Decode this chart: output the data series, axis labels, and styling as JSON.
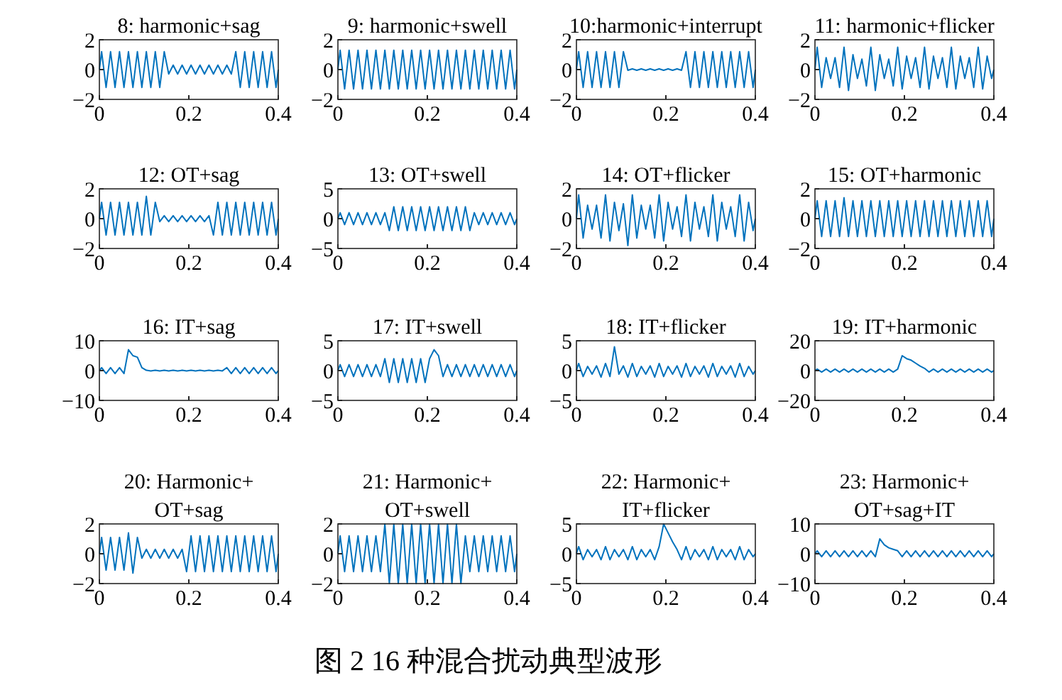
{
  "chart_data": [
    {
      "type": "line",
      "title": "8: harmonic+sag",
      "color": "#0072bd",
      "xlim": [
        0,
        0.4
      ],
      "ylim": [
        -2,
        2
      ],
      "xticks": [
        0,
        0.2,
        0.4
      ],
      "yticks": [
        -2,
        0,
        2
      ],
      "x": [
        0,
        0.005,
        0.015,
        0.025,
        0.035,
        0.045,
        0.055,
        0.065,
        0.075,
        0.085,
        0.095,
        0.105,
        0.115,
        0.125,
        0.135,
        0.145,
        0.155,
        0.165,
        0.175,
        0.185,
        0.195,
        0.205,
        0.215,
        0.225,
        0.235,
        0.245,
        0.255,
        0.265,
        0.275,
        0.285,
        0.295,
        0.305,
        0.315,
        0.325,
        0.335,
        0.345,
        0.355,
        0.365,
        0.375,
        0.385,
        0.395,
        0.4
      ],
      "values": [
        0,
        1.2,
        -1.2,
        1.2,
        -1.2,
        1.2,
        -1.2,
        1.2,
        -1.2,
        1.2,
        -1.2,
        1.2,
        -1.2,
        1.2,
        -1.2,
        1.2,
        -0.3,
        0.3,
        -0.3,
        0.3,
        -0.3,
        0.3,
        -0.3,
        0.3,
        -0.3,
        0.3,
        -0.3,
        0.3,
        -0.3,
        0.3,
        -0.3,
        1.2,
        -1.2,
        1.2,
        -1.2,
        1.2,
        -1.2,
        1.2,
        -1.2,
        1.2,
        -1.2,
        0
      ]
    },
    {
      "type": "line",
      "title": "9: harmonic+swell",
      "color": "#0072bd",
      "xlim": [
        0,
        0.4
      ],
      "ylim": [
        -2,
        2
      ],
      "xticks": [
        0,
        0.2,
        0.4
      ],
      "yticks": [
        -2,
        0,
        2
      ],
      "x": [
        0,
        0.005,
        0.015,
        0.025,
        0.035,
        0.045,
        0.055,
        0.065,
        0.075,
        0.085,
        0.095,
        0.105,
        0.115,
        0.125,
        0.135,
        0.145,
        0.155,
        0.165,
        0.175,
        0.185,
        0.195,
        0.205,
        0.215,
        0.225,
        0.235,
        0.245,
        0.255,
        0.265,
        0.275,
        0.285,
        0.295,
        0.305,
        0.315,
        0.325,
        0.335,
        0.345,
        0.355,
        0.365,
        0.375,
        0.385,
        0.395,
        0.4
      ],
      "values": [
        0,
        1.3,
        -1.3,
        1.3,
        -1.3,
        1.3,
        -1.3,
        1.3,
        -1.3,
        1.3,
        -1.3,
        1.3,
        -1.3,
        1.3,
        -1.3,
        1.3,
        -1.3,
        1.3,
        -1.3,
        1.3,
        -1.3,
        1.3,
        -1.3,
        1.3,
        -1.3,
        1.3,
        -1.3,
        1.3,
        -1.3,
        1.3,
        -1.3,
        1.3,
        -1.3,
        1.3,
        -1.3,
        1.3,
        -1.3,
        1.3,
        -1.3,
        1.3,
        -1.3,
        0
      ]
    },
    {
      "type": "line",
      "title": "10:harmonic+interrupt",
      "color": "#0072bd",
      "xlim": [
        0,
        0.4
      ],
      "ylim": [
        -2,
        2
      ],
      "xticks": [
        0,
        0.2,
        0.4
      ],
      "yticks": [
        -2,
        0,
        2
      ],
      "x": [
        0,
        0.005,
        0.015,
        0.025,
        0.035,
        0.045,
        0.055,
        0.065,
        0.075,
        0.085,
        0.095,
        0.105,
        0.115,
        0.125,
        0.135,
        0.145,
        0.155,
        0.165,
        0.175,
        0.185,
        0.195,
        0.205,
        0.215,
        0.225,
        0.235,
        0.245,
        0.255,
        0.265,
        0.275,
        0.285,
        0.295,
        0.305,
        0.315,
        0.325,
        0.335,
        0.345,
        0.355,
        0.365,
        0.375,
        0.385,
        0.395,
        0.4
      ],
      "values": [
        0,
        1.2,
        -1.2,
        1.2,
        -1.2,
        1.2,
        -1.2,
        1.2,
        -1.2,
        1.2,
        -1.2,
        1.2,
        -0.05,
        0.05,
        -0.05,
        0.05,
        -0.05,
        0.05,
        -0.05,
        0.05,
        -0.05,
        0.05,
        -0.05,
        0.05,
        -0.05,
        1.2,
        -1.2,
        1.2,
        -1.2,
        1.2,
        -1.2,
        1.2,
        -1.2,
        1.2,
        -1.2,
        1.2,
        -1.2,
        1.2,
        -1.2,
        1.2,
        -1.2,
        0
      ]
    },
    {
      "type": "line",
      "title": "11: harmonic+flicker",
      "color": "#0072bd",
      "xlim": [
        0,
        0.4
      ],
      "ylim": [
        -2,
        2
      ],
      "xticks": [
        0,
        0.2,
        0.4
      ],
      "yticks": [
        -2,
        0,
        2
      ],
      "x": [
        0,
        0.005,
        0.015,
        0.025,
        0.035,
        0.045,
        0.055,
        0.065,
        0.075,
        0.085,
        0.095,
        0.105,
        0.115,
        0.125,
        0.135,
        0.145,
        0.155,
        0.165,
        0.175,
        0.185,
        0.195,
        0.205,
        0.215,
        0.225,
        0.235,
        0.245,
        0.255,
        0.265,
        0.275,
        0.285,
        0.295,
        0.305,
        0.315,
        0.325,
        0.335,
        0.345,
        0.355,
        0.365,
        0.375,
        0.385,
        0.395,
        0.4
      ],
      "values": [
        0,
        1.5,
        -1.2,
        0.8,
        -0.6,
        0.8,
        -1.2,
        1.5,
        -1.4,
        1.0,
        -0.6,
        0.7,
        -1.1,
        1.5,
        -1.4,
        1.0,
        -0.6,
        0.7,
        -1.1,
        1.5,
        -1.3,
        0.9,
        -0.6,
        0.8,
        -1.2,
        1.5,
        -1.3,
        0.9,
        -0.6,
        0.8,
        -1.2,
        1.5,
        -1.3,
        0.9,
        -0.6,
        0.8,
        -1.2,
        1.5,
        -1.3,
        0.9,
        -0.6,
        0
      ]
    },
    {
      "type": "line",
      "title": "12: OT+sag",
      "color": "#0072bd",
      "xlim": [
        0,
        0.4
      ],
      "ylim": [
        -2,
        2
      ],
      "xticks": [
        0,
        0.2,
        0.4
      ],
      "yticks": [
        -2,
        0,
        2
      ],
      "x": [
        0,
        0.005,
        0.015,
        0.025,
        0.035,
        0.045,
        0.055,
        0.065,
        0.075,
        0.085,
        0.095,
        0.105,
        0.115,
        0.125,
        0.135,
        0.145,
        0.155,
        0.165,
        0.175,
        0.185,
        0.195,
        0.205,
        0.215,
        0.225,
        0.235,
        0.245,
        0.255,
        0.265,
        0.275,
        0.285,
        0.295,
        0.305,
        0.315,
        0.325,
        0.335,
        0.345,
        0.355,
        0.365,
        0.375,
        0.385,
        0.395,
        0.4
      ],
      "values": [
        0,
        1.1,
        -1.1,
        1.1,
        -1.1,
        1.1,
        -1.1,
        1.1,
        -1.1,
        1.1,
        -1.1,
        1.5,
        -1.1,
        1.1,
        -0.2,
        0.2,
        -0.2,
        0.2,
        -0.2,
        0.2,
        -0.2,
        0.2,
        -0.2,
        0.2,
        -0.2,
        0.2,
        -1.1,
        1.1,
        -1.1,
        1.1,
        -1.1,
        1.1,
        -1.1,
        1.1,
        -1.1,
        1.1,
        -1.1,
        1.1,
        -1.1,
        1.1,
        -1.1,
        0
      ]
    },
    {
      "type": "line",
      "title": "13: OT+swell",
      "color": "#0072bd",
      "xlim": [
        0,
        0.4
      ],
      "ylim": [
        -5,
        5
      ],
      "xticks": [
        0,
        0.2,
        0.4
      ],
      "yticks": [
        -5,
        0,
        5
      ],
      "x": [
        0,
        0.005,
        0.015,
        0.025,
        0.035,
        0.045,
        0.055,
        0.065,
        0.075,
        0.085,
        0.095,
        0.105,
        0.115,
        0.125,
        0.135,
        0.145,
        0.155,
        0.165,
        0.175,
        0.185,
        0.195,
        0.205,
        0.215,
        0.225,
        0.235,
        0.245,
        0.255,
        0.265,
        0.275,
        0.285,
        0.295,
        0.305,
        0.315,
        0.325,
        0.335,
        0.345,
        0.355,
        0.365,
        0.375,
        0.385,
        0.395,
        0.4
      ],
      "values": [
        0,
        1,
        -1,
        1,
        -1,
        1,
        -1,
        1,
        -1,
        1,
        -1,
        1,
        -2,
        2,
        -2,
        2,
        -2,
        2,
        -2,
        2,
        -2,
        2,
        -2,
        2,
        -2,
        2,
        -2,
        2,
        -2,
        2,
        -2,
        1,
        -1,
        1,
        -1,
        1,
        -1,
        1,
        -1,
        1,
        -1,
        0
      ]
    },
    {
      "type": "line",
      "title": "14: OT+flicker",
      "color": "#0072bd",
      "xlim": [
        0,
        0.4
      ],
      "ylim": [
        -2,
        2
      ],
      "xticks": [
        0,
        0.2,
        0.4
      ],
      "yticks": [
        -2,
        0,
        2
      ],
      "x": [
        0,
        0.005,
        0.015,
        0.025,
        0.035,
        0.045,
        0.055,
        0.065,
        0.075,
        0.085,
        0.095,
        0.105,
        0.115,
        0.125,
        0.135,
        0.145,
        0.155,
        0.165,
        0.175,
        0.185,
        0.195,
        0.205,
        0.215,
        0.225,
        0.235,
        0.245,
        0.255,
        0.265,
        0.275,
        0.285,
        0.295,
        0.305,
        0.315,
        0.325,
        0.335,
        0.345,
        0.355,
        0.365,
        0.375,
        0.385,
        0.395,
        0.4
      ],
      "values": [
        0,
        1.6,
        -1.3,
        0.9,
        -0.7,
        0.9,
        -1.3,
        1.6,
        -1.5,
        1.1,
        -0.8,
        1.0,
        -1.8,
        1.6,
        -1.3,
        0.9,
        -0.7,
        0.9,
        -1.3,
        1.6,
        -1.5,
        1.1,
        -0.7,
        0.8,
        -1.2,
        1.6,
        -1.5,
        1.1,
        -0.7,
        0.8,
        -1.2,
        1.6,
        -1.5,
        1.1,
        -0.7,
        0.8,
        -1.2,
        1.6,
        -1.5,
        1.1,
        -0.8,
        0
      ]
    },
    {
      "type": "line",
      "title": "15: OT+harmonic",
      "color": "#0072bd",
      "xlim": [
        0,
        0.4
      ],
      "ylim": [
        -2,
        2
      ],
      "xticks": [
        0,
        0.2,
        0.4
      ],
      "yticks": [
        -2,
        0,
        2
      ],
      "x": [
        0,
        0.005,
        0.015,
        0.025,
        0.035,
        0.045,
        0.055,
        0.065,
        0.075,
        0.085,
        0.095,
        0.105,
        0.115,
        0.125,
        0.135,
        0.145,
        0.155,
        0.165,
        0.175,
        0.185,
        0.195,
        0.205,
        0.215,
        0.225,
        0.235,
        0.245,
        0.255,
        0.265,
        0.275,
        0.285,
        0.295,
        0.305,
        0.315,
        0.325,
        0.335,
        0.345,
        0.355,
        0.365,
        0.375,
        0.385,
        0.395,
        0.4
      ],
      "values": [
        0,
        1.2,
        -1.2,
        1.2,
        -1.2,
        1.2,
        -1.2,
        1.4,
        -1.2,
        1.2,
        -1.2,
        1.2,
        -1.2,
        1.2,
        -1.2,
        1.2,
        -1.2,
        1.2,
        -1.2,
        1.2,
        -1.2,
        1.2,
        -1.2,
        1.2,
        -1.2,
        1.2,
        -1.2,
        1.2,
        -1.2,
        1.2,
        -1.2,
        1.2,
        -1.2,
        1.2,
        -1.2,
        1.2,
        -1.2,
        1.2,
        -1.2,
        1.2,
        -1.2,
        0
      ]
    },
    {
      "type": "line",
      "title": "16: IT+sag",
      "color": "#0072bd",
      "xlim": [
        0,
        0.4
      ],
      "ylim": [
        -10,
        10
      ],
      "xticks": [
        0,
        0.2,
        0.4
      ],
      "yticks": [
        -10,
        0,
        10
      ],
      "x": [
        0,
        0.005,
        0.015,
        0.025,
        0.035,
        0.045,
        0.055,
        0.065,
        0.075,
        0.085,
        0.095,
        0.105,
        0.115,
        0.125,
        0.135,
        0.145,
        0.155,
        0.165,
        0.175,
        0.185,
        0.195,
        0.205,
        0.215,
        0.225,
        0.235,
        0.245,
        0.255,
        0.265,
        0.275,
        0.285,
        0.295,
        0.305,
        0.315,
        0.325,
        0.335,
        0.345,
        0.355,
        0.365,
        0.375,
        0.385,
        0.395,
        0.4
      ],
      "values": [
        0,
        1,
        -1,
        1,
        -1,
        1,
        -1,
        7,
        5,
        4.5,
        1,
        0.1,
        -0.1,
        0.1,
        -0.1,
        0.1,
        -0.1,
        0.1,
        -0.1,
        0.1,
        -0.1,
        0.1,
        -0.1,
        0.1,
        -0.1,
        0.1,
        -0.1,
        0.1,
        -0.1,
        1,
        -1,
        1,
        -1,
        1,
        -1,
        1,
        -1,
        1,
        -1,
        1,
        -1,
        0
      ]
    },
    {
      "type": "line",
      "title": "17: IT+swell",
      "color": "#0072bd",
      "xlim": [
        0,
        0.4
      ],
      "ylim": [
        -5,
        5
      ],
      "xticks": [
        0,
        0.2,
        0.4
      ],
      "yticks": [
        -5,
        0,
        5
      ],
      "x": [
        0,
        0.005,
        0.015,
        0.025,
        0.035,
        0.045,
        0.055,
        0.065,
        0.075,
        0.085,
        0.095,
        0.105,
        0.115,
        0.125,
        0.135,
        0.145,
        0.155,
        0.165,
        0.175,
        0.185,
        0.195,
        0.205,
        0.215,
        0.225,
        0.235,
        0.245,
        0.255,
        0.265,
        0.275,
        0.285,
        0.295,
        0.305,
        0.315,
        0.325,
        0.335,
        0.345,
        0.355,
        0.365,
        0.375,
        0.385,
        0.395,
        0.4
      ],
      "values": [
        0,
        1,
        -1,
        1,
        -1,
        1,
        -1,
        1,
        -1,
        1,
        -1,
        2,
        -2,
        2,
        -2,
        2,
        -2,
        2,
        -2,
        2,
        -2,
        2,
        3.5,
        2.5,
        -1,
        1,
        -1,
        1,
        -1,
        1,
        -1,
        1,
        -1,
        1,
        -1,
        1,
        -1,
        1,
        -1,
        1,
        -1,
        0
      ]
    },
    {
      "type": "line",
      "title": "18: IT+flicker",
      "color": "#0072bd",
      "xlim": [
        0,
        0.4
      ],
      "ylim": [
        -5,
        5
      ],
      "xticks": [
        0,
        0.2,
        0.4
      ],
      "yticks": [
        -5,
        0,
        5
      ],
      "x": [
        0,
        0.005,
        0.015,
        0.025,
        0.035,
        0.045,
        0.055,
        0.065,
        0.075,
        0.085,
        0.095,
        0.105,
        0.115,
        0.125,
        0.135,
        0.145,
        0.155,
        0.165,
        0.175,
        0.185,
        0.195,
        0.205,
        0.215,
        0.225,
        0.235,
        0.245,
        0.255,
        0.265,
        0.275,
        0.285,
        0.295,
        0.305,
        0.315,
        0.325,
        0.335,
        0.345,
        0.355,
        0.365,
        0.375,
        0.385,
        0.395,
        0.4
      ],
      "values": [
        0,
        1.2,
        -1.0,
        0.7,
        -0.6,
        0.8,
        -1.1,
        1.2,
        -1.0,
        4,
        -0.6,
        0.8,
        -1.1,
        1.2,
        -1.0,
        0.7,
        -0.6,
        0.8,
        -1.1,
        1.2,
        -1.0,
        0.7,
        -0.6,
        0.8,
        -1.1,
        1.2,
        -1.0,
        0.7,
        -0.6,
        0.8,
        -1.1,
        1.2,
        -1.0,
        0.7,
        -0.6,
        0.8,
        -1.1,
        1.2,
        -1.0,
        0.7,
        -0.6,
        0
      ]
    },
    {
      "type": "line",
      "title": "19: IT+harmonic",
      "color": "#0072bd",
      "xlim": [
        0,
        0.4
      ],
      "ylim": [
        -20,
        20
      ],
      "xticks": [
        0,
        0.2,
        0.4
      ],
      "yticks": [
        -20,
        0,
        20
      ],
      "x": [
        0,
        0.005,
        0.015,
        0.025,
        0.035,
        0.045,
        0.055,
        0.065,
        0.075,
        0.085,
        0.095,
        0.105,
        0.115,
        0.125,
        0.135,
        0.145,
        0.155,
        0.165,
        0.175,
        0.185,
        0.195,
        0.205,
        0.215,
        0.225,
        0.235,
        0.245,
        0.255,
        0.265,
        0.275,
        0.285,
        0.295,
        0.305,
        0.315,
        0.325,
        0.335,
        0.345,
        0.355,
        0.365,
        0.375,
        0.385,
        0.395,
        0.4
      ],
      "values": [
        0,
        1,
        -1,
        1,
        -1,
        1,
        -1,
        1,
        -1,
        1,
        -1,
        1,
        -1,
        1,
        -1,
        1,
        -1,
        1,
        -1,
        1,
        10,
        8,
        7,
        5,
        3,
        1.5,
        -1,
        1,
        -1,
        1,
        -1,
        1,
        -1,
        1,
        -1,
        1,
        -1,
        1,
        -1,
        1,
        -1,
        0
      ]
    },
    {
      "type": "line",
      "title": "20: Harmonic+\nOT+sag",
      "color": "#0072bd",
      "xlim": [
        0,
        0.4
      ],
      "ylim": [
        -2,
        2
      ],
      "xticks": [
        0,
        0.2,
        0.4
      ],
      "yticks": [
        -2,
        0,
        2
      ],
      "x": [
        0,
        0.005,
        0.015,
        0.025,
        0.035,
        0.045,
        0.055,
        0.065,
        0.075,
        0.085,
        0.095,
        0.105,
        0.115,
        0.125,
        0.135,
        0.145,
        0.155,
        0.165,
        0.175,
        0.185,
        0.195,
        0.205,
        0.215,
        0.225,
        0.235,
        0.245,
        0.255,
        0.265,
        0.275,
        0.285,
        0.295,
        0.305,
        0.315,
        0.325,
        0.335,
        0.345,
        0.355,
        0.365,
        0.375,
        0.385,
        0.395,
        0.4
      ],
      "values": [
        0,
        1.1,
        -1.1,
        1.1,
        -1.1,
        1.1,
        -1.1,
        1.4,
        -1.3,
        1.1,
        -0.3,
        0.3,
        -0.3,
        0.3,
        -0.3,
        0.3,
        -0.3,
        0.3,
        -0.3,
        0.3,
        -1.2,
        1.2,
        -1.2,
        1.2,
        -1.2,
        1.2,
        -1.2,
        1.2,
        -1.2,
        1.2,
        -1.2,
        1.2,
        -1.2,
        1.2,
        -1.2,
        1.2,
        -1.2,
        1.2,
        -1.2,
        1.2,
        -1.2,
        0
      ]
    },
    {
      "type": "line",
      "title": "21: Harmonic+\nOT+swell",
      "color": "#0072bd",
      "xlim": [
        0,
        0.4
      ],
      "ylim": [
        -2,
        2
      ],
      "xticks": [
        0,
        0.2,
        0.4
      ],
      "yticks": [
        -2,
        0,
        2
      ],
      "x": [
        0,
        0.005,
        0.015,
        0.025,
        0.035,
        0.045,
        0.055,
        0.065,
        0.075,
        0.085,
        0.095,
        0.105,
        0.115,
        0.125,
        0.135,
        0.145,
        0.155,
        0.165,
        0.175,
        0.185,
        0.195,
        0.205,
        0.215,
        0.225,
        0.235,
        0.245,
        0.255,
        0.265,
        0.275,
        0.285,
        0.295,
        0.305,
        0.315,
        0.325,
        0.335,
        0.345,
        0.355,
        0.365,
        0.375,
        0.385,
        0.395,
        0.4
      ],
      "values": [
        0,
        1.2,
        -1.2,
        1.2,
        -1.2,
        1.2,
        -1.2,
        1.2,
        -1.2,
        1.2,
        -1.2,
        2,
        -2,
        2,
        -2,
        2,
        -2,
        2,
        -2,
        2,
        -2,
        2,
        -2,
        2,
        -2,
        2,
        -2,
        2,
        -2,
        1.2,
        -1.2,
        1.2,
        -1.2,
        1.2,
        -1.2,
        1.2,
        -1.2,
        1.2,
        -1.2,
        1.2,
        -1.2,
        0
      ]
    },
    {
      "type": "line",
      "title": "22: Harmonic+\nIT+flicker",
      "color": "#0072bd",
      "xlim": [
        0,
        0.4
      ],
      "ylim": [
        -5,
        5
      ],
      "xticks": [
        0,
        0.2,
        0.4
      ],
      "yticks": [
        -5,
        0,
        5
      ],
      "x": [
        0,
        0.005,
        0.015,
        0.025,
        0.035,
        0.045,
        0.055,
        0.065,
        0.075,
        0.085,
        0.095,
        0.105,
        0.115,
        0.125,
        0.135,
        0.145,
        0.155,
        0.165,
        0.175,
        0.185,
        0.195,
        0.205,
        0.215,
        0.225,
        0.235,
        0.245,
        0.255,
        0.265,
        0.275,
        0.285,
        0.295,
        0.305,
        0.315,
        0.325,
        0.335,
        0.345,
        0.355,
        0.365,
        0.375,
        0.385,
        0.395,
        0.4
      ],
      "values": [
        0,
        1.2,
        -1.0,
        0.7,
        -0.5,
        0.7,
        -1.0,
        1.2,
        -1.0,
        0.7,
        -0.5,
        0.7,
        -1.0,
        1.2,
        -1.0,
        0.7,
        -0.5,
        0.7,
        -1.0,
        1.2,
        5,
        3.5,
        2,
        0.7,
        -1.0,
        1.2,
        -1.0,
        0.7,
        -0.5,
        0.7,
        -1.0,
        1.2,
        -1.0,
        0.7,
        -0.5,
        0.7,
        -1.0,
        1.2,
        -1.0,
        0.7,
        -0.5,
        0
      ]
    },
    {
      "type": "line",
      "title": "23: Harmonic+\nOT+sag+IT",
      "color": "#0072bd",
      "xlim": [
        0,
        0.4
      ],
      "ylim": [
        -10,
        10
      ],
      "xticks": [
        0,
        0.2,
        0.4
      ],
      "yticks": [
        -10,
        0,
        10
      ],
      "x": [
        0,
        0.005,
        0.015,
        0.025,
        0.035,
        0.045,
        0.055,
        0.065,
        0.075,
        0.085,
        0.095,
        0.105,
        0.115,
        0.125,
        0.135,
        0.145,
        0.155,
        0.165,
        0.175,
        0.185,
        0.195,
        0.205,
        0.215,
        0.225,
        0.235,
        0.245,
        0.255,
        0.265,
        0.275,
        0.285,
        0.295,
        0.305,
        0.315,
        0.325,
        0.335,
        0.345,
        0.355,
        0.365,
        0.375,
        0.385,
        0.395,
        0.4
      ],
      "values": [
        0,
        1,
        -1,
        1,
        -1,
        1,
        -1,
        1,
        -1,
        1,
        -1,
        1,
        -1,
        1,
        -1,
        5,
        3,
        2,
        1.5,
        1,
        -1,
        1,
        -1,
        1,
        -1,
        1,
        -1,
        1,
        -1,
        1,
        -1,
        1,
        -1,
        1,
        -1,
        1,
        -1,
        1,
        -1,
        1,
        -1,
        0
      ]
    },
    {
      "type": "other",
      "title": "图 2 16 种混合扰动典型波形"
    }
  ]
}
